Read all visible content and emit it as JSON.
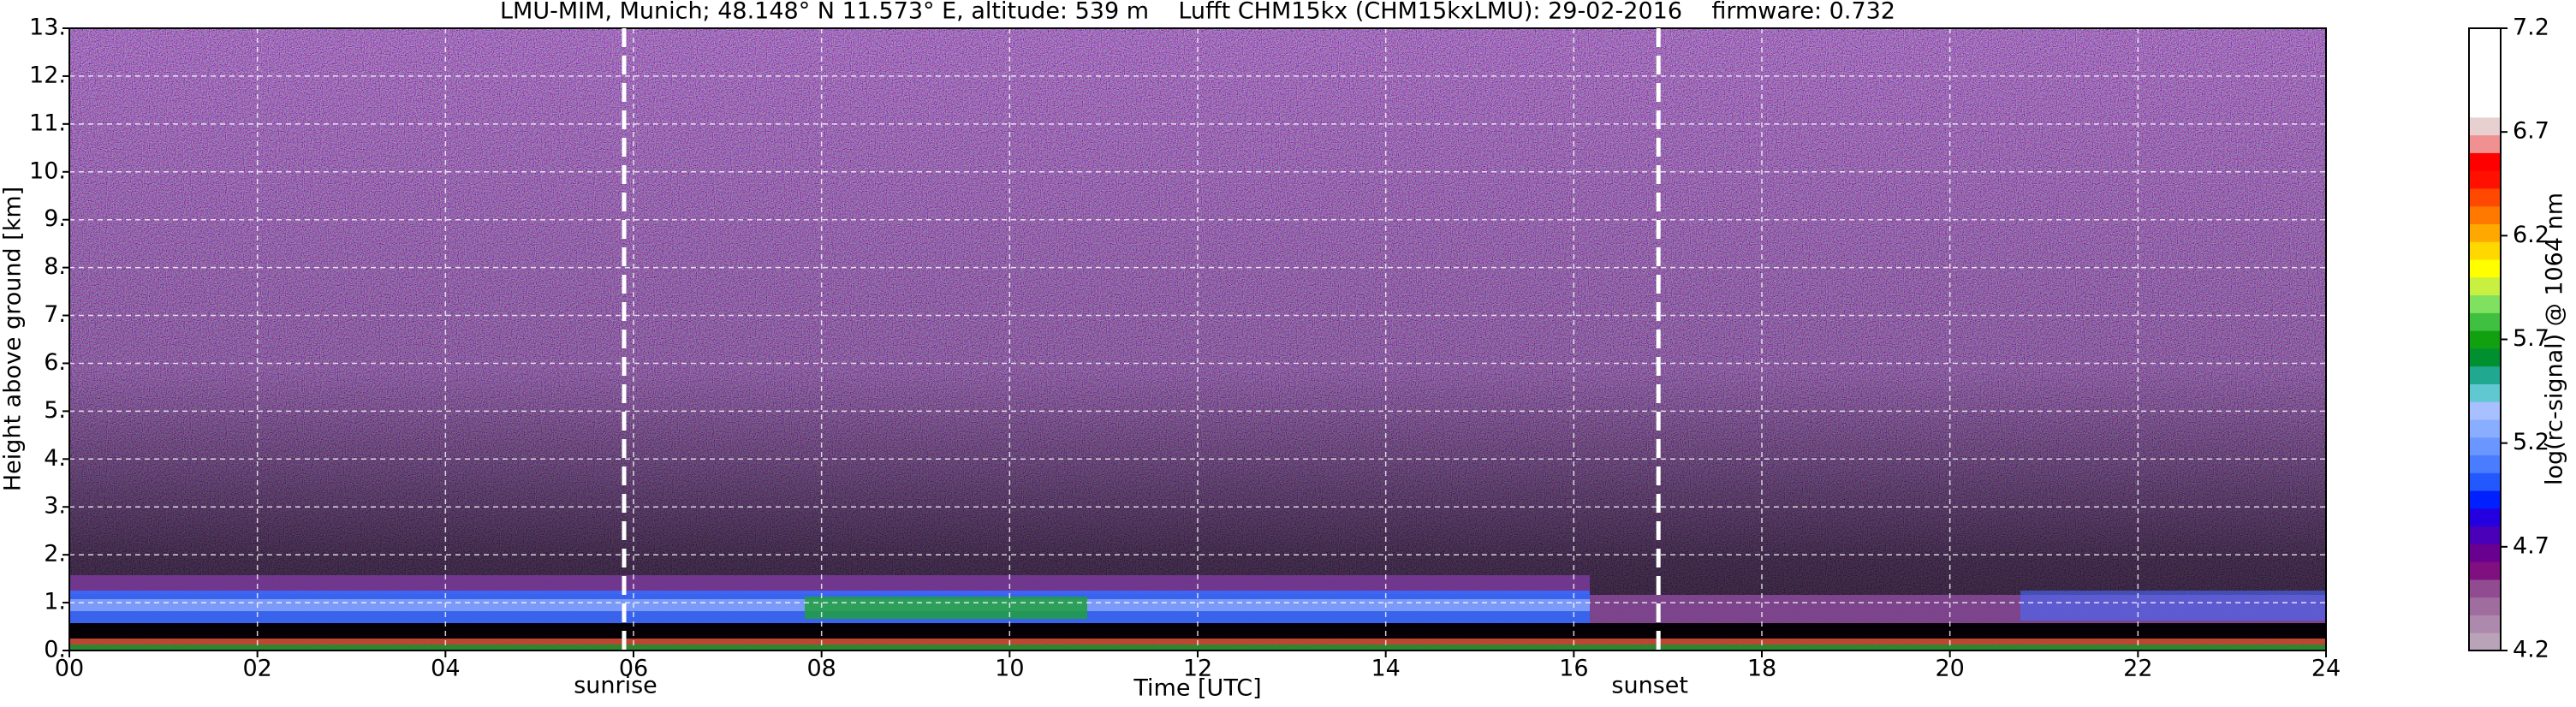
{
  "chart_data": {
    "type": "heatmap",
    "title": "LMU-MIM, Munich; 48.148° N 11.573° E, altitude: 539 m    Lufft CHM15kx (CHM15kxLMU): 29-02-2016    firmware: 0.732",
    "xlabel": "Time [UTC]",
    "ylabel": "Height above ground [km]",
    "xlim": [
      0,
      24
    ],
    "xticks": [
      {
        "value": 0,
        "label": "00"
      },
      {
        "value": 2,
        "label": "02"
      },
      {
        "value": 4,
        "label": "04"
      },
      {
        "value": 6,
        "label": "06"
      },
      {
        "value": 8,
        "label": "08"
      },
      {
        "value": 10,
        "label": "10"
      },
      {
        "value": 12,
        "label": "12"
      },
      {
        "value": 14,
        "label": "14"
      },
      {
        "value": 16,
        "label": "16"
      },
      {
        "value": 18,
        "label": "18"
      },
      {
        "value": 20,
        "label": "20"
      },
      {
        "value": 22,
        "label": "22"
      },
      {
        "value": 24,
        "label": "24"
      }
    ],
    "ylim": [
      0,
      13
    ],
    "yticks": [
      {
        "value": 0,
        "label": "0."
      },
      {
        "value": 1,
        "label": "1."
      },
      {
        "value": 2,
        "label": "2."
      },
      {
        "value": 3,
        "label": "3."
      },
      {
        "value": 4,
        "label": "4."
      },
      {
        "value": 5,
        "label": "5."
      },
      {
        "value": 6,
        "label": "6."
      },
      {
        "value": 7,
        "label": "7."
      },
      {
        "value": 8,
        "label": "8."
      },
      {
        "value": 9,
        "label": "9."
      },
      {
        "value": 10,
        "label": "10."
      },
      {
        "value": 11,
        "label": "11."
      },
      {
        "value": 12,
        "label": "12."
      },
      {
        "value": 13,
        "label": "13."
      }
    ],
    "grid": true,
    "annotations": [
      {
        "text": "sunrise",
        "x": 5.9
      },
      {
        "text": "sunset",
        "x": 16.9
      }
    ],
    "colorbar": {
      "label": "log(rc-signal) @ 1064 nm",
      "lim": [
        4.2,
        7.2
      ],
      "ticks": [
        4.2,
        4.7,
        5.2,
        5.7,
        6.2,
        6.7,
        7.2
      ],
      "colors": [
        "#b9a3b9",
        "#ad8aad",
        "#9f6e9f",
        "#914c91",
        "#800f80",
        "#6a0090",
        "#4a00b8",
        "#2400e0",
        "#0020ff",
        "#2458ff",
        "#4a7cff",
        "#6a96ff",
        "#8aaeff",
        "#a8c0ff",
        "#60c8d0",
        "#20a890",
        "#009030",
        "#10a010",
        "#40c040",
        "#80e060",
        "#c8f040",
        "#ffff00",
        "#ffd800",
        "#ffa800",
        "#ff7800",
        "#ff4800",
        "#ff1000",
        "#ff0000",
        "#f09090",
        "#e8d0d0",
        "#ffffff",
        "#ffffff",
        "#ffffff",
        "#ffffff",
        "#ffffff"
      ]
    }
  }
}
